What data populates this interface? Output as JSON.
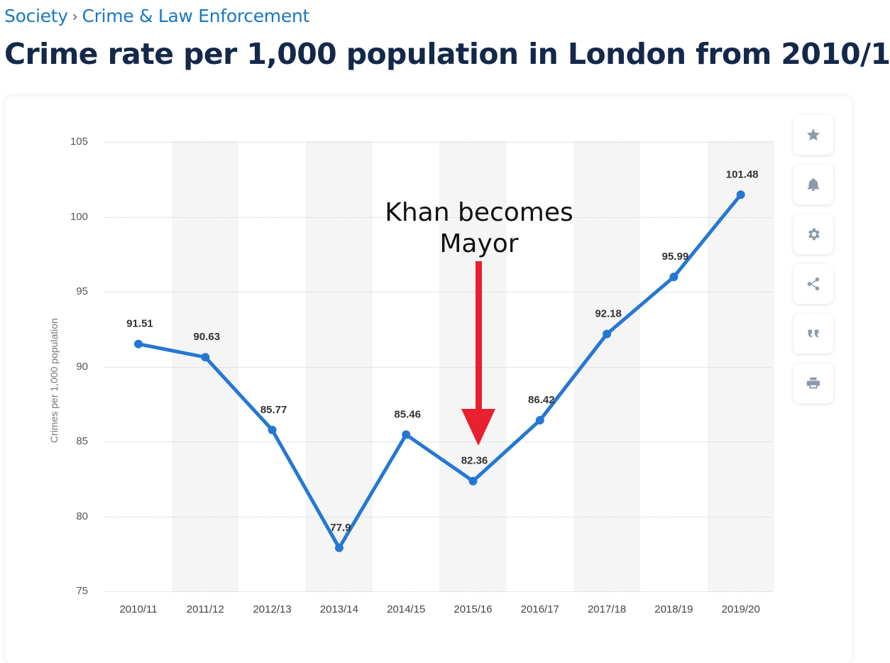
{
  "breadcrumb": {
    "items": [
      "Society",
      "Crime & Law Enforcement"
    ],
    "separator": "›"
  },
  "page_title": "Crime rate per 1,000 population in London from 2010/1",
  "annotation": {
    "line1": "Khan becomes",
    "line2": "Mayor",
    "arrow_color": "#e8202f"
  },
  "toolbar": {
    "icons": [
      "star-icon",
      "bell-icon",
      "gear-icon",
      "share-icon",
      "quote-icon",
      "print-icon"
    ]
  },
  "colors": {
    "line": "#2577d3",
    "title": "#14284a",
    "breadcrumb": "#1a78c2"
  },
  "chart_data": {
    "type": "line",
    "title": "",
    "xlabel": "",
    "ylabel": "Crimes per 1,000 population",
    "categories": [
      "2010/11",
      "2011/12",
      "2012/13",
      "2013/14",
      "2014/15",
      "2015/16",
      "2016/17",
      "2017/18",
      "2018/19",
      "2019/20"
    ],
    "series": [
      {
        "values": [
          91.51,
          90.63,
          85.77,
          77.9,
          85.46,
          82.36,
          86.42,
          92.18,
          95.99,
          101.48
        ]
      }
    ],
    "data_labels": [
      "91.51",
      "90.63",
      "85.77",
      "77.9",
      "85.46",
      "82.36",
      "86.42",
      "92.18",
      "95.99",
      "101.48"
    ],
    "ylim": [
      75,
      105
    ],
    "yticks": [
      "105",
      "100",
      "95",
      "90",
      "85",
      "80",
      "75"
    ],
    "ytick_values": [
      105,
      100,
      95,
      90,
      85,
      80,
      75
    ],
    "grid": true,
    "legend": "none"
  }
}
